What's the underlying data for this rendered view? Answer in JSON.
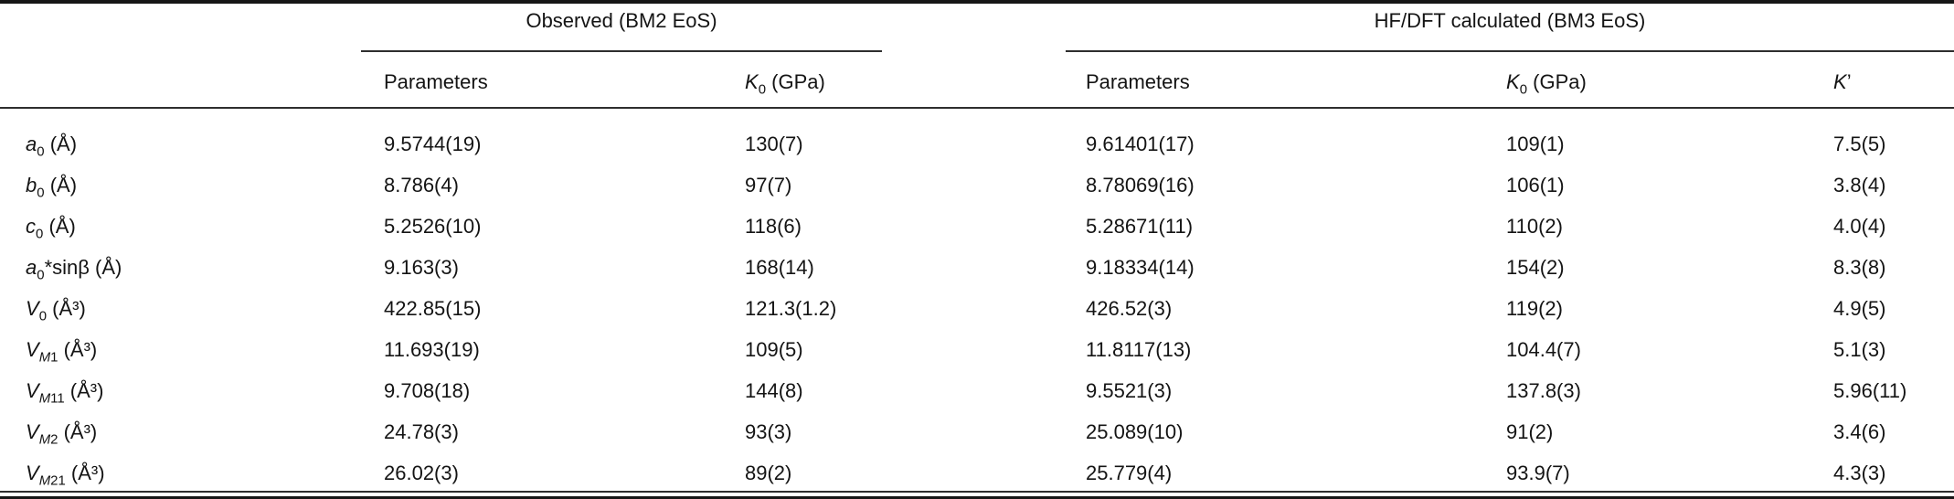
{
  "page": {
    "background_color": "#ffffff",
    "text_color": "#141414",
    "rule_color": "#2e2e2e"
  },
  "table": {
    "col_groups": [
      {
        "label": "Observed (BM2 EoS)"
      },
      {
        "label": "HF/DFT calculated (BM3 EoS)"
      }
    ],
    "headers": {
      "obs_param": {
        "text": "Parameters"
      },
      "obs_k0": {
        "it": "K",
        "sub": "0",
        "suffix": " (GPa)"
      },
      "calc_param": {
        "text": "Parameters"
      },
      "calc_k0": {
        "it": "K",
        "sub": "0",
        "suffix": " (GPa)"
      },
      "k_prime": {
        "it": "K",
        "suffix": "’"
      }
    },
    "rows": [
      {
        "label": {
          "it": "a",
          "sub": "0",
          "suffix": " (Å)"
        },
        "obs_param": "9.5744(19)",
        "obs_k0": "130(7)",
        "calc_param": "9.61401(17)",
        "calc_k0": "109(1)",
        "k_prime": "7.5(5)"
      },
      {
        "label": {
          "it": "b",
          "sub": "0",
          "suffix": " (Å)"
        },
        "obs_param": "8.786(4)",
        "obs_k0": "97(7)",
        "calc_param": "8.78069(16)",
        "calc_k0": "106(1)",
        "k_prime": "3.8(4)"
      },
      {
        "label": {
          "it": "c",
          "sub": "0",
          "suffix": " (Å)"
        },
        "obs_param": "5.2526(10)",
        "obs_k0": "118(6)",
        "calc_param": "5.28671(11)",
        "calc_k0": "110(2)",
        "k_prime": "4.0(4)"
      },
      {
        "label": {
          "it": "a",
          "sub": "0",
          "suffix": "*sinβ (Å)"
        },
        "obs_param": "9.163(3)",
        "obs_k0": "168(14)",
        "calc_param": "9.18334(14)",
        "calc_k0": "154(2)",
        "k_prime": "8.3(8)"
      },
      {
        "label": {
          "it": "V",
          "sub": "0",
          "suffix": " (Å³)"
        },
        "obs_param": "422.85(15)",
        "obs_k0": "121.3(1.2)",
        "calc_param": "426.52(3)",
        "calc_k0": "119(2)",
        "k_prime": "4.9(5)"
      },
      {
        "label": {
          "it": "V",
          "sub_it": "M",
          "sub": "1",
          "suffix": " (Å³)"
        },
        "obs_param": "11.693(19)",
        "obs_k0": "109(5)",
        "calc_param": "11.8117(13)",
        "calc_k0": "104.4(7)",
        "k_prime": "5.1(3)"
      },
      {
        "label": {
          "it": "V",
          "sub_it": "M",
          "sub": "11",
          "suffix": " (Å³)"
        },
        "obs_param": "9.708(18)",
        "obs_k0": "144(8)",
        "calc_param": "9.5521(3)",
        "calc_k0": "137.8(3)",
        "k_prime": "5.96(11)"
      },
      {
        "label": {
          "it": "V",
          "sub_it": "M",
          "sub": "2",
          "suffix": " (Å³)"
        },
        "obs_param": "24.78(3)",
        "obs_k0": "93(3)",
        "calc_param": "25.089(10)",
        "calc_k0": "91(2)",
        "k_prime": "3.4(6)"
      },
      {
        "label": {
          "it": "V",
          "sub_it": "M",
          "sub": "21",
          "suffix": " (Å³)"
        },
        "obs_param": "26.02(3)",
        "obs_k0": "89(2)",
        "calc_param": "25.779(4)",
        "calc_k0": "93.9(7)",
        "k_prime": "4.3(3)"
      }
    ]
  }
}
